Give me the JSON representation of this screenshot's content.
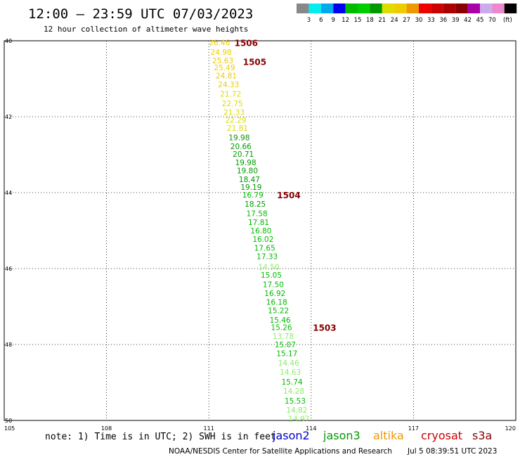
{
  "header": {
    "title": "12:00 – 23:59 UTC 07/03/2023",
    "subtitle": "12 hour collection of altimeter wave heights"
  },
  "color_scale": {
    "colors": [
      "#888888",
      "#00eeee",
      "#00aaee",
      "#0000ee",
      "#00bb00",
      "#00cc00",
      "#009900",
      "#dddd00",
      "#eecc00",
      "#ee9900",
      "#ee0000",
      "#cc0000",
      "#aa0000",
      "#880000",
      "#aa00aa",
      "#ccaaee",
      "#ee88cc",
      "#000000"
    ],
    "labels": [
      "3",
      "6",
      "9",
      "12",
      "15",
      "18",
      "21",
      "24",
      "27",
      "30",
      "33",
      "36",
      "39",
      "42",
      "45",
      "70"
    ],
    "unit": "(ft)"
  },
  "map": {
    "lon_ticks": [
      "105",
      "108",
      "111",
      "114",
      "117",
      "120"
    ],
    "lat_ticks": [
      "40",
      "42",
      "44",
      "46",
      "48",
      "50"
    ],
    "lon_range": [
      105,
      120
    ],
    "lat_range": [
      -40,
      -50
    ],
    "grid": true
  },
  "observations": [
    {
      "value": "26.46",
      "color": "#eecc00",
      "lon": 111.0,
      "lat": -40.05
    },
    {
      "value": "24.98",
      "color": "#eecc00",
      "lon": 111.05,
      "lat": -40.3
    },
    {
      "value": "25.63",
      "color": "#eecc00",
      "lon": 111.1,
      "lat": -40.52
    },
    {
      "value": "25.49",
      "color": "#eecc00",
      "lon": 111.15,
      "lat": -40.7
    },
    {
      "value": "24.81",
      "color": "#eecc00",
      "lon": 111.2,
      "lat": -40.92
    },
    {
      "value": "24.33",
      "color": "#eecc00",
      "lon": 111.27,
      "lat": -41.15
    },
    {
      "value": "21.72",
      "color": "#dddd00",
      "lon": 111.33,
      "lat": -41.4
    },
    {
      "value": "22.75",
      "color": "#dddd00",
      "lon": 111.38,
      "lat": -41.65
    },
    {
      "value": "21.33",
      "color": "#dddd00",
      "lon": 111.43,
      "lat": -41.88
    },
    {
      "value": "22.29",
      "color": "#dddd00",
      "lon": 111.48,
      "lat": -42.08
    },
    {
      "value": "21.81",
      "color": "#dddd00",
      "lon": 111.53,
      "lat": -42.3
    },
    {
      "value": "19.98",
      "color": "#009900",
      "lon": 111.58,
      "lat": -42.55
    },
    {
      "value": "20.66",
      "color": "#009900",
      "lon": 111.63,
      "lat": -42.78
    },
    {
      "value": "20.71",
      "color": "#009900",
      "lon": 111.7,
      "lat": -42.98
    },
    {
      "value": "19.98",
      "color": "#009900",
      "lon": 111.77,
      "lat": -43.2
    },
    {
      "value": "19.80",
      "color": "#009900",
      "lon": 111.82,
      "lat": -43.42
    },
    {
      "value": "18.47",
      "color": "#009900",
      "lon": 111.88,
      "lat": -43.65
    },
    {
      "value": "19.19",
      "color": "#009900",
      "lon": 111.93,
      "lat": -43.85
    },
    {
      "value": "16.79",
      "color": "#00bb00",
      "lon": 111.98,
      "lat": -44.06
    },
    {
      "value": "18.25",
      "color": "#009900",
      "lon": 112.05,
      "lat": -44.3
    },
    {
      "value": "17.58",
      "color": "#00bb00",
      "lon": 112.1,
      "lat": -44.55
    },
    {
      "value": "17.81",
      "color": "#00bb00",
      "lon": 112.15,
      "lat": -44.78
    },
    {
      "value": "16.80",
      "color": "#00bb00",
      "lon": 112.22,
      "lat": -45.0
    },
    {
      "value": "16.02",
      "color": "#00bb00",
      "lon": 112.28,
      "lat": -45.22
    },
    {
      "value": "17.65",
      "color": "#00bb00",
      "lon": 112.33,
      "lat": -45.45
    },
    {
      "value": "17.33",
      "color": "#00bb00",
      "lon": 112.4,
      "lat": -45.68
    },
    {
      "value": "14.50",
      "color": "#88ee66",
      "lon": 112.45,
      "lat": -45.95
    },
    {
      "value": "15.05",
      "color": "#00bb00",
      "lon": 112.52,
      "lat": -46.17
    },
    {
      "value": "17.50",
      "color": "#00bb00",
      "lon": 112.58,
      "lat": -46.42
    },
    {
      "value": "16.92",
      "color": "#00bb00",
      "lon": 112.63,
      "lat": -46.65
    },
    {
      "value": "16.18",
      "color": "#00bb00",
      "lon": 112.68,
      "lat": -46.88
    },
    {
      "value": "15.22",
      "color": "#00bb00",
      "lon": 112.73,
      "lat": -47.1
    },
    {
      "value": "15.46",
      "color": "#00bb00",
      "lon": 112.78,
      "lat": -47.35
    },
    {
      "value": "15.26",
      "color": "#00bb00",
      "lon": 112.82,
      "lat": -47.55
    },
    {
      "value": "13.78",
      "color": "#88ee66",
      "lon": 112.87,
      "lat": -47.78
    },
    {
      "value": "15.07",
      "color": "#00bb00",
      "lon": 112.93,
      "lat": -48.0
    },
    {
      "value": "15.17",
      "color": "#00bb00",
      "lon": 112.98,
      "lat": -48.23
    },
    {
      "value": "14.46",
      "color": "#88ee66",
      "lon": 113.03,
      "lat": -48.48
    },
    {
      "value": "14.63",
      "color": "#88ee66",
      "lon": 113.08,
      "lat": -48.72
    },
    {
      "value": "15.74",
      "color": "#00bb00",
      "lon": 113.13,
      "lat": -48.98
    },
    {
      "value": "14.28",
      "color": "#88ee66",
      "lon": 113.18,
      "lat": -49.22
    },
    {
      "value": "15.53",
      "color": "#00bb00",
      "lon": 113.22,
      "lat": -49.48
    },
    {
      "value": "14.82",
      "color": "#88ee66",
      "lon": 113.27,
      "lat": -49.72
    },
    {
      "value": "14.97",
      "color": "#88ee66",
      "lon": 113.33,
      "lat": -49.95
    }
  ],
  "time_labels": [
    {
      "text": "1506",
      "lon": 111.75,
      "lat": -40.05
    },
    {
      "text": "1505",
      "lon": 112.0,
      "lat": -40.55
    },
    {
      "text": "1504",
      "lon": 113.0,
      "lat": -44.06
    },
    {
      "text": "1503",
      "lon": 114.05,
      "lat": -47.55
    }
  ],
  "time_label_color": "#880000",
  "footer": {
    "note": "note: 1) Time is in UTC; 2) SWH is in feet",
    "satellites": [
      {
        "name": "jason2",
        "color": "#0000cc"
      },
      {
        "name": "jason3",
        "color": "#009900"
      },
      {
        "name": "altika",
        "color": "#ee9900"
      },
      {
        "name": "cryosat",
        "color": "#cc0000"
      },
      {
        "name": "s3a",
        "color": "#880000"
      }
    ],
    "credit": "NOAA/NESDIS Center for Satellite Applications and Research",
    "generated": "Jul  5 08:39:51 UTC 2023"
  }
}
